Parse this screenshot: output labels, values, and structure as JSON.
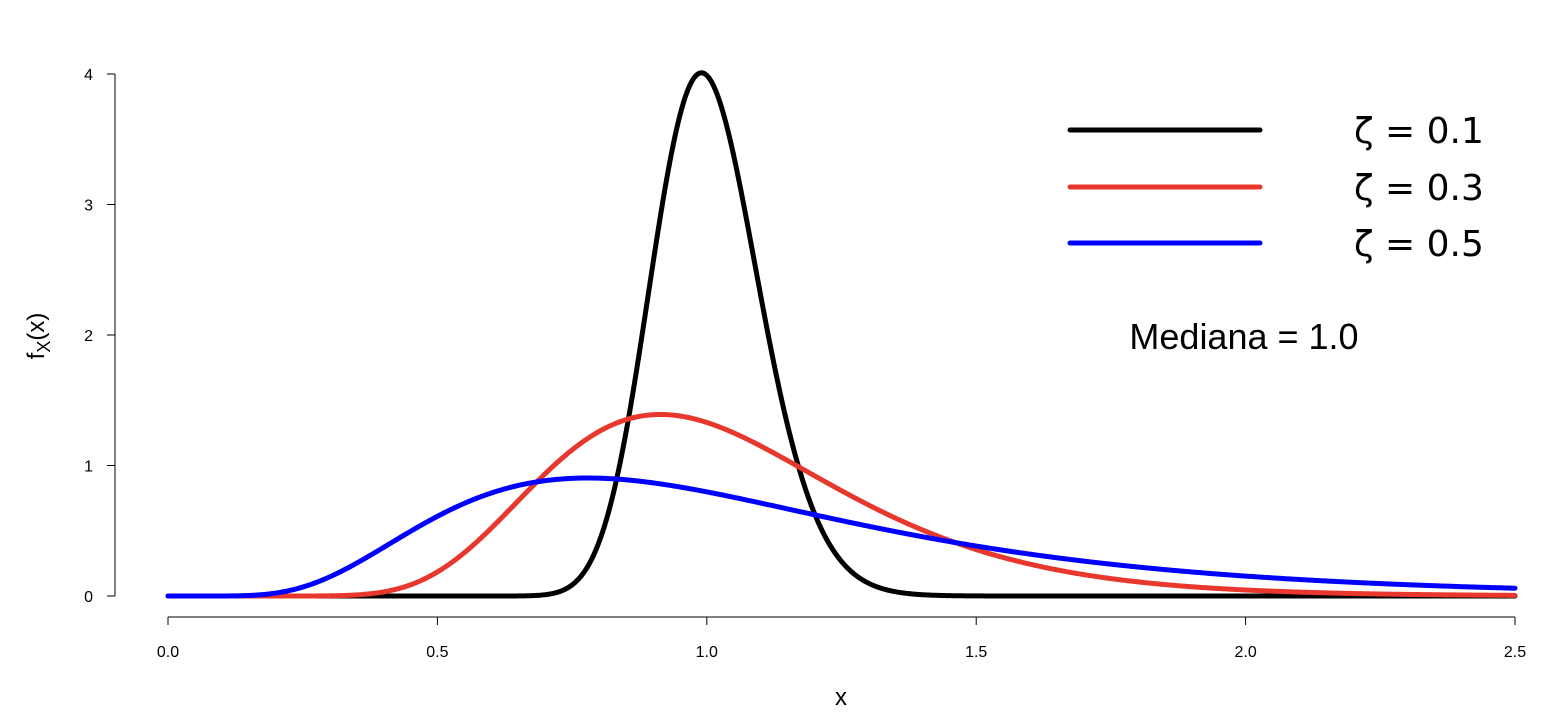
{
  "chart_data": {
    "type": "line",
    "title": "",
    "xlabel": "x",
    "ylabel_main": "f",
    "ylabel_sub": "X",
    "ylabel_suffix": "(x)",
    "xlim": [
      0,
      2.5
    ],
    "ylim": [
      0,
      4
    ],
    "xticks": [
      0.0,
      0.5,
      1.0,
      1.5,
      2.0,
      2.5
    ],
    "xtick_labels": [
      "0.0",
      "0.5",
      "1.0",
      "1.5",
      "2.0",
      "2.5"
    ],
    "yticks": [
      0,
      1,
      2,
      3,
      4
    ],
    "ytick_labels": [
      "0",
      "1",
      "2",
      "3",
      "4"
    ],
    "grid": false,
    "legend_position": "top-right",
    "distribution": "lognormal",
    "median": 1.0,
    "annotation": "Mediana = 1.0",
    "series": [
      {
        "name": "ζ = 0.1",
        "zeta": 0.1,
        "color": "#000000"
      },
      {
        "name": "ζ = 0.3",
        "zeta": 0.3,
        "color": "#e8382e"
      },
      {
        "name": "ζ = 0.5",
        "zeta": 0.5,
        "color": "#0000ff"
      }
    ]
  }
}
